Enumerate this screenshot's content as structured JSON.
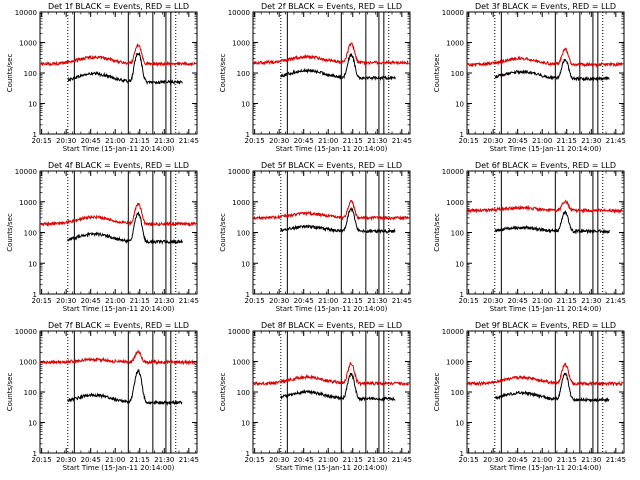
{
  "chart_data": [
    {
      "type": "line",
      "title": "Det 1f BLACK = Events, RED = LLD",
      "xlabel": "Start Time (15-Jan-11 20:14:00)",
      "ylabel": "Counts/sec",
      "x_tick_labels": [
        "20:15",
        "20:30",
        "20:45",
        "21:00",
        "21:15",
        "21:30",
        "21:45"
      ],
      "y_tick_labels": [
        "1",
        "10",
        "100",
        "1000",
        "10000"
      ],
      "y_scale": "log",
      "ylim": [
        1,
        10000
      ],
      "xlim_minutes": [
        0,
        96
      ],
      "series": [
        {
          "name": "Events",
          "color": "#000000",
          "x_start": "20:31",
          "x_end": "21:41",
          "baseline": 50,
          "hump": 95,
          "peak": 450
        },
        {
          "name": "LLD",
          "color": "#e00000",
          "x_start": "20:14",
          "x_end": "21:49",
          "baseline": 200,
          "hump": 330,
          "peak": 850
        }
      ]
    },
    {
      "type": "line",
      "title": "Det 2f BLACK = Events, RED = LLD",
      "xlabel": "Start Time (15-Jan-11 20:14:00)",
      "ylabel": "Counts/sec",
      "x_tick_labels": [
        "20:15",
        "20:30",
        "20:45",
        "21:00",
        "21:15",
        "21:30",
        "21:45"
      ],
      "y_tick_labels": [
        "1",
        "10",
        "100",
        "1000",
        "10000"
      ],
      "y_scale": "log",
      "ylim": [
        1,
        10000
      ],
      "xlim_minutes": [
        0,
        96
      ],
      "series": [
        {
          "name": "Events",
          "color": "#000000",
          "x_start": "20:31",
          "x_end": "21:41",
          "baseline": 70,
          "hump": 120,
          "peak": 400
        },
        {
          "name": "LLD",
          "color": "#e00000",
          "x_start": "20:14",
          "x_end": "21:49",
          "baseline": 220,
          "hump": 340,
          "peak": 900
        }
      ]
    },
    {
      "type": "line",
      "title": "Det 3f BLACK = Events, RED = LLD",
      "xlabel": "Start Time (15-Jan-11 20:14:00)",
      "ylabel": "Counts/sec",
      "x_tick_labels": [
        "20:15",
        "20:30",
        "20:45",
        "21:00",
        "21:15",
        "21:30",
        "21:45"
      ],
      "y_tick_labels": [
        "1",
        "10",
        "100",
        "1000",
        "10000"
      ],
      "y_scale": "log",
      "ylim": [
        1,
        10000
      ],
      "xlim_minutes": [
        0,
        96
      ],
      "series": [
        {
          "name": "Events",
          "color": "#000000",
          "x_start": "20:31",
          "x_end": "21:41",
          "baseline": 65,
          "hump": 110,
          "peak": 280
        },
        {
          "name": "LLD",
          "color": "#e00000",
          "x_start": "20:14",
          "x_end": "21:49",
          "baseline": 190,
          "hump": 300,
          "peak": 620
        }
      ]
    },
    {
      "type": "line",
      "title": "Det 4f BLACK = Events, RED = LLD",
      "xlabel": "Start Time (15-Jan-11 20:14:00)",
      "ylabel": "Counts/sec",
      "x_tick_labels": [
        "20:15",
        "20:30",
        "20:45",
        "21:00",
        "21:15",
        "21:30",
        "21:45"
      ],
      "y_tick_labels": [
        "1",
        "10",
        "100",
        "1000",
        "10000"
      ],
      "y_scale": "log",
      "ylim": [
        1,
        10000
      ],
      "xlim_minutes": [
        0,
        96
      ],
      "series": [
        {
          "name": "Events",
          "color": "#000000",
          "x_start": "20:31",
          "x_end": "21:41",
          "baseline": 50,
          "hump": 90,
          "peak": 420
        },
        {
          "name": "LLD",
          "color": "#e00000",
          "x_start": "20:14",
          "x_end": "21:49",
          "baseline": 190,
          "hump": 320,
          "peak": 850
        }
      ]
    },
    {
      "type": "line",
      "title": "Det 5f BLACK = Events, RED = LLD",
      "xlabel": "Start Time (15-Jan-11 20:14:00)",
      "ylabel": "Counts/sec",
      "x_tick_labels": [
        "20:15",
        "20:30",
        "20:45",
        "21:00",
        "21:15",
        "21:30",
        "21:45"
      ],
      "y_tick_labels": [
        "1",
        "10",
        "100",
        "1000",
        "10000"
      ],
      "y_scale": "log",
      "ylim": [
        1,
        10000
      ],
      "xlim_minutes": [
        0,
        96
      ],
      "series": [
        {
          "name": "Events",
          "color": "#000000",
          "x_start": "20:31",
          "x_end": "21:41",
          "baseline": 110,
          "hump": 155,
          "peak": 600
        },
        {
          "name": "LLD",
          "color": "#e00000",
          "x_start": "20:14",
          "x_end": "21:49",
          "baseline": 300,
          "hump": 420,
          "peak": 1000
        }
      ]
    },
    {
      "type": "line",
      "title": "Det 6f BLACK = Events, RED = LLD",
      "xlabel": "Start Time (15-Jan-11 20:14:00)",
      "ylabel": "Counts/sec",
      "x_tick_labels": [
        "20:15",
        "20:30",
        "20:45",
        "21:00",
        "21:15",
        "21:30",
        "21:45"
      ],
      "y_tick_labels": [
        "1",
        "10",
        "100",
        "1000",
        "10000"
      ],
      "y_scale": "log",
      "ylim": [
        1,
        10000
      ],
      "xlim_minutes": [
        0,
        96
      ],
      "series": [
        {
          "name": "Events",
          "color": "#000000",
          "x_start": "20:31",
          "x_end": "21:41",
          "baseline": 110,
          "hump": 145,
          "peak": 450
        },
        {
          "name": "LLD",
          "color": "#e00000",
          "x_start": "20:14",
          "x_end": "21:49",
          "baseline": 520,
          "hump": 640,
          "peak": 1050
        }
      ]
    },
    {
      "type": "line",
      "title": "Det 7f BLACK = Events, RED = LLD",
      "xlabel": "Start Time (15-Jan-11 20:14:00)",
      "ylabel": "Counts/sec",
      "x_tick_labels": [
        "20:15",
        "20:30",
        "20:45",
        "21:00",
        "21:15",
        "21:30",
        "21:45"
      ],
      "y_tick_labels": [
        "1",
        "10",
        "100",
        "1000",
        "10000"
      ],
      "y_scale": "log",
      "ylim": [
        1,
        10000
      ],
      "xlim_minutes": [
        0,
        96
      ],
      "series": [
        {
          "name": "Events",
          "color": "#000000",
          "x_start": "20:31",
          "x_end": "21:41",
          "baseline": 45,
          "hump": 80,
          "peak": 480
        },
        {
          "name": "LLD",
          "color": "#e00000",
          "x_start": "20:14",
          "x_end": "21:49",
          "baseline": 950,
          "hump": 1150,
          "peak": 2100
        }
      ]
    },
    {
      "type": "line",
      "title": "Det 8f BLACK = Events, RED = LLD",
      "xlabel": "Start Time (15-Jan-11 20:14:00)",
      "ylabel": "Counts/sec",
      "x_tick_labels": [
        "20:15",
        "20:30",
        "20:45",
        "21:00",
        "21:15",
        "21:30",
        "21:45"
      ],
      "y_tick_labels": [
        "1",
        "10",
        "100",
        "1000",
        "10000"
      ],
      "y_scale": "log",
      "ylim": [
        1,
        10000
      ],
      "xlim_minutes": [
        0,
        96
      ],
      "series": [
        {
          "name": "Events",
          "color": "#000000",
          "x_start": "20:31",
          "x_end": "21:41",
          "baseline": 60,
          "hump": 100,
          "peak": 380
        },
        {
          "name": "LLD",
          "color": "#e00000",
          "x_start": "20:14",
          "x_end": "21:49",
          "baseline": 190,
          "hump": 310,
          "peak": 850
        }
      ]
    },
    {
      "type": "line",
      "title": "Det 9f BLACK = Events, RED = LLD",
      "xlabel": "Start Time (15-Jan-11 20:14:00)",
      "ylabel": "Counts/sec",
      "x_tick_labels": [
        "20:15",
        "20:30",
        "20:45",
        "21:00",
        "21:15",
        "21:30",
        "21:45"
      ],
      "y_tick_labels": [
        "1",
        "10",
        "100",
        "1000",
        "10000"
      ],
      "y_scale": "log",
      "ylim": [
        1,
        10000
      ],
      "xlim_minutes": [
        0,
        96
      ],
      "series": [
        {
          "name": "Events",
          "color": "#000000",
          "x_start": "20:31",
          "x_end": "21:41",
          "baseline": 55,
          "hump": 95,
          "peak": 390
        },
        {
          "name": "LLD",
          "color": "#e00000",
          "x_start": "20:14",
          "x_end": "21:49",
          "baseline": 190,
          "hump": 300,
          "peak": 800
        }
      ]
    }
  ],
  "markers_minutes": [
    {
      "time": "20:31",
      "style": "dotted"
    },
    {
      "time": "20:35",
      "style": "solid"
    },
    {
      "time": "21:08",
      "style": "solid"
    },
    {
      "time": "21:23",
      "style": "solid"
    },
    {
      "time": "21:31",
      "style": "solid"
    },
    {
      "time": "21:34",
      "style": "solid"
    },
    {
      "time": "21:37",
      "style": "dotted"
    }
  ],
  "flare_peak_time": "21:14"
}
